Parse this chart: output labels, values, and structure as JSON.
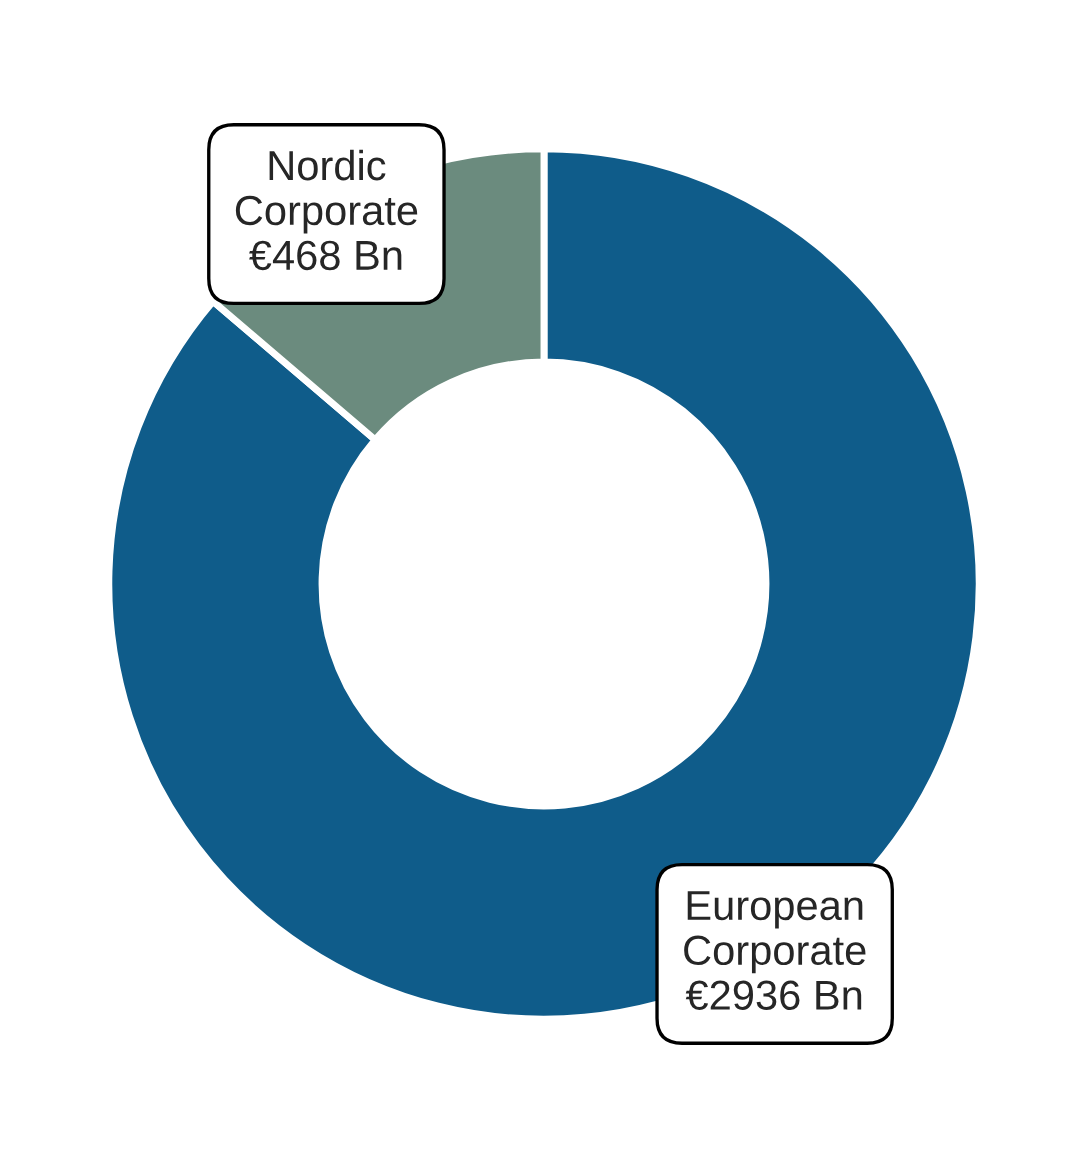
{
  "chart_data": {
    "type": "donut",
    "categories": [
      "European Corporate",
      "Nordic Corporate"
    ],
    "values": [
      2936,
      468
    ],
    "colors": [
      "#0f5c8a",
      "#6b8b7e"
    ],
    "value_labels": [
      "€2936 Bn",
      "€468 Bn"
    ],
    "legend": false
  }
}
